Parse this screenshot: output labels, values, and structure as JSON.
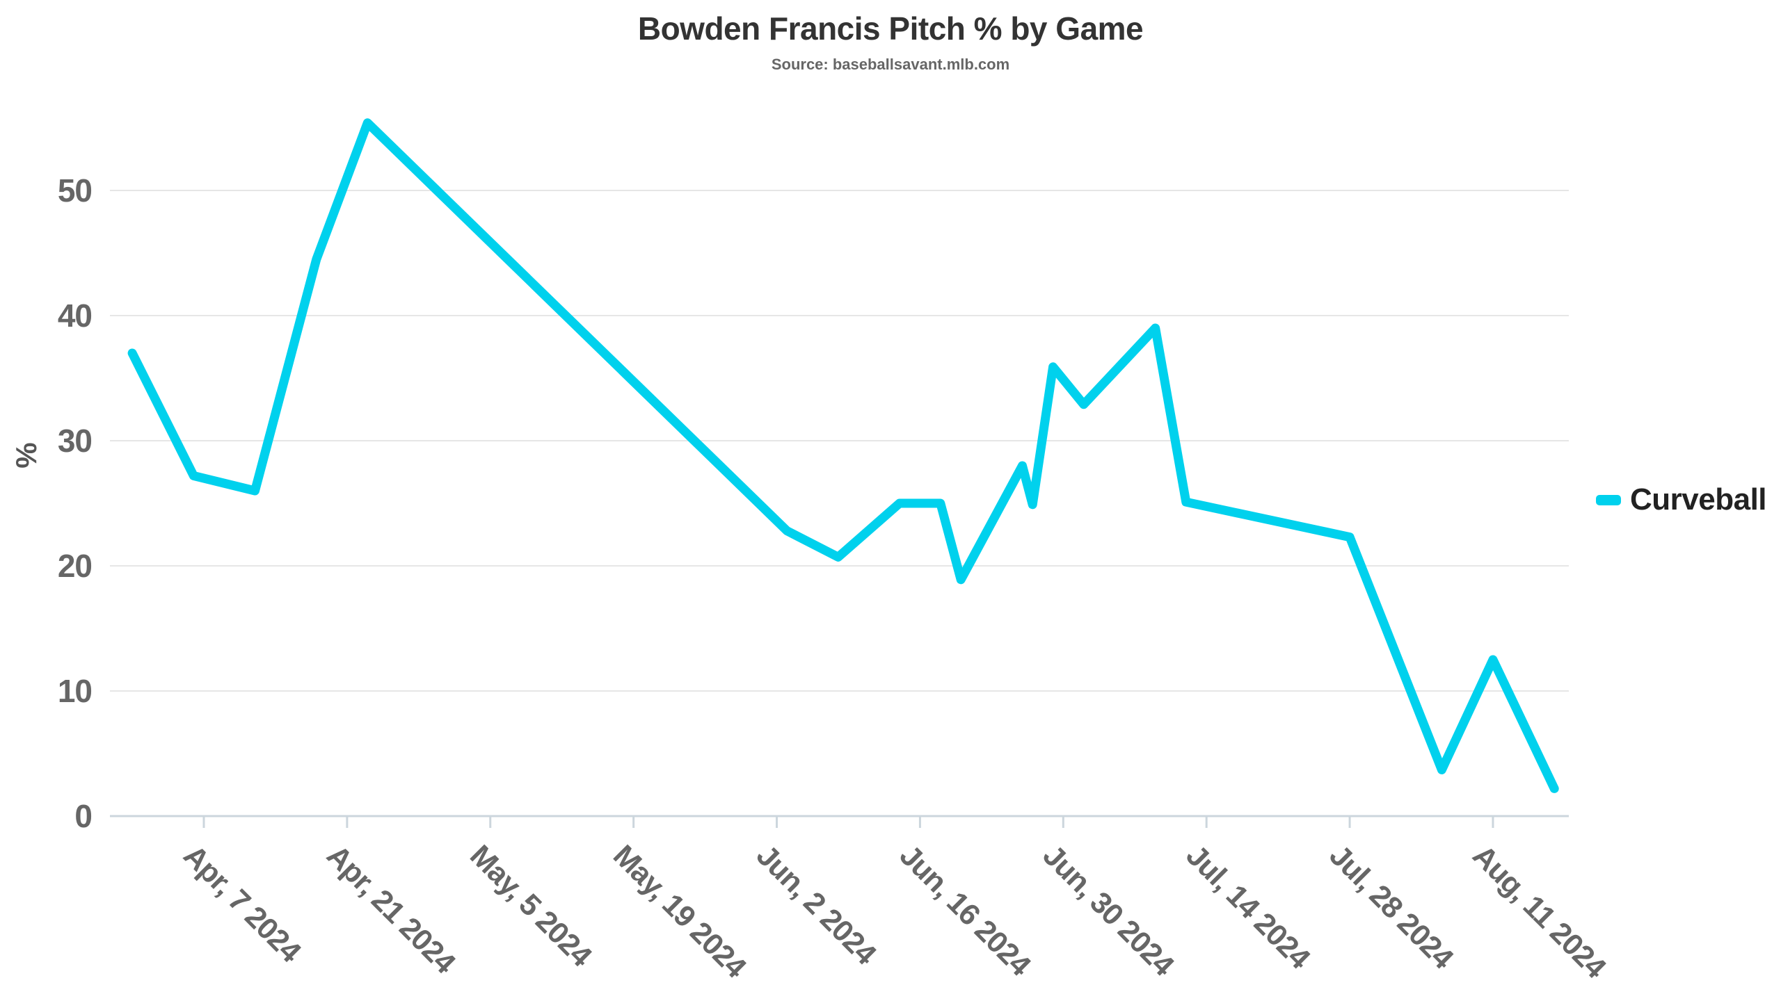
{
  "title": "Bowden Francis Pitch % by Game",
  "subtitle": "Source: baseballsavant.mlb.com",
  "legend": {
    "items": [
      {
        "label": "Curveball",
        "color": "#00D1ED"
      }
    ]
  },
  "colors": {
    "background": "#ffffff",
    "title_text": "#333333",
    "subtitle_text": "#666666",
    "axis_label_text": "#666666",
    "gridline": "#e6e6e6",
    "axis_line": "#ccd6dd",
    "series_curveball": "#00D1ED"
  },
  "chart_data": {
    "type": "line",
    "title": "Bowden Francis Pitch % by Game",
    "subtitle": "Source: baseballsavant.mlb.com",
    "xlabel": "",
    "ylabel": "%",
    "ylim": [
      0,
      57
    ],
    "grid": "horizontal",
    "legend_position": "right",
    "y_ticks": [
      {
        "label": "0",
        "pct": 0
      },
      {
        "label": "10",
        "pct": 10
      },
      {
        "label": "20",
        "pct": 20
      },
      {
        "label": "30",
        "pct": 30
      },
      {
        "label": "40",
        "pct": 40
      },
      {
        "label": "50",
        "pct": 50
      }
    ],
    "x_ticks": [
      {
        "label": "Apr, 7 2024",
        "day": 7
      },
      {
        "label": "Apr, 21 2024",
        "day": 21
      },
      {
        "label": "May, 5 2024",
        "day": 35
      },
      {
        "label": "May, 19 2024",
        "day": 49
      },
      {
        "label": "Jun, 2 2024",
        "day": 63
      },
      {
        "label": "Jun, 16 2024",
        "day": 77
      },
      {
        "label": "Jun, 30 2024",
        "day": 91
      },
      {
        "label": "Jul, 14 2024",
        "day": 105
      },
      {
        "label": "Jul, 28 2024",
        "day": 119
      },
      {
        "label": "Aug, 11 2024",
        "day": 133
      }
    ],
    "series": [
      {
        "name": "Curveball",
        "color": "#00D1ED",
        "points": [
          {
            "date": "Mar 31 2024",
            "day": 0,
            "pct": 37.0
          },
          {
            "date": "Apr 6 2024",
            "day": 6,
            "pct": 27.2
          },
          {
            "date": "Apr 12 2024",
            "day": 12,
            "pct": 26.0
          },
          {
            "date": "Apr 18 2024",
            "day": 18,
            "pct": 44.5
          },
          {
            "date": "Apr 23 2024",
            "day": 23,
            "pct": 55.4
          },
          {
            "date": "Jun 3 2024",
            "day": 64,
            "pct": 22.8
          },
          {
            "date": "Jun 8 2024",
            "day": 69,
            "pct": 20.7
          },
          {
            "date": "Jun 14 2024",
            "day": 75,
            "pct": 25.0
          },
          {
            "date": "Jun 18 2024",
            "day": 79,
            "pct": 25.0
          },
          {
            "date": "Jun 20 2024",
            "day": 81,
            "pct": 18.9
          },
          {
            "date": "Jun 26 2024",
            "day": 87,
            "pct": 28.0
          },
          {
            "date": "Jun 27 2024",
            "day": 88,
            "pct": 24.9
          },
          {
            "date": "Jun 29 2024",
            "day": 90,
            "pct": 35.9
          },
          {
            "date": "Jul 2 2024",
            "day": 93,
            "pct": 32.9
          },
          {
            "date": "Jul 9 2024",
            "day": 100,
            "pct": 39.0
          },
          {
            "date": "Jul 12 2024",
            "day": 103,
            "pct": 25.1
          },
          {
            "date": "Jul 28 2024",
            "day": 119,
            "pct": 22.3
          },
          {
            "date": "Aug 6 2024",
            "day": 128,
            "pct": 3.7
          },
          {
            "date": "Aug 11 2024",
            "day": 133,
            "pct": 12.5
          },
          {
            "date": "Aug 17 2024",
            "day": 139,
            "pct": 2.2
          }
        ]
      }
    ]
  }
}
